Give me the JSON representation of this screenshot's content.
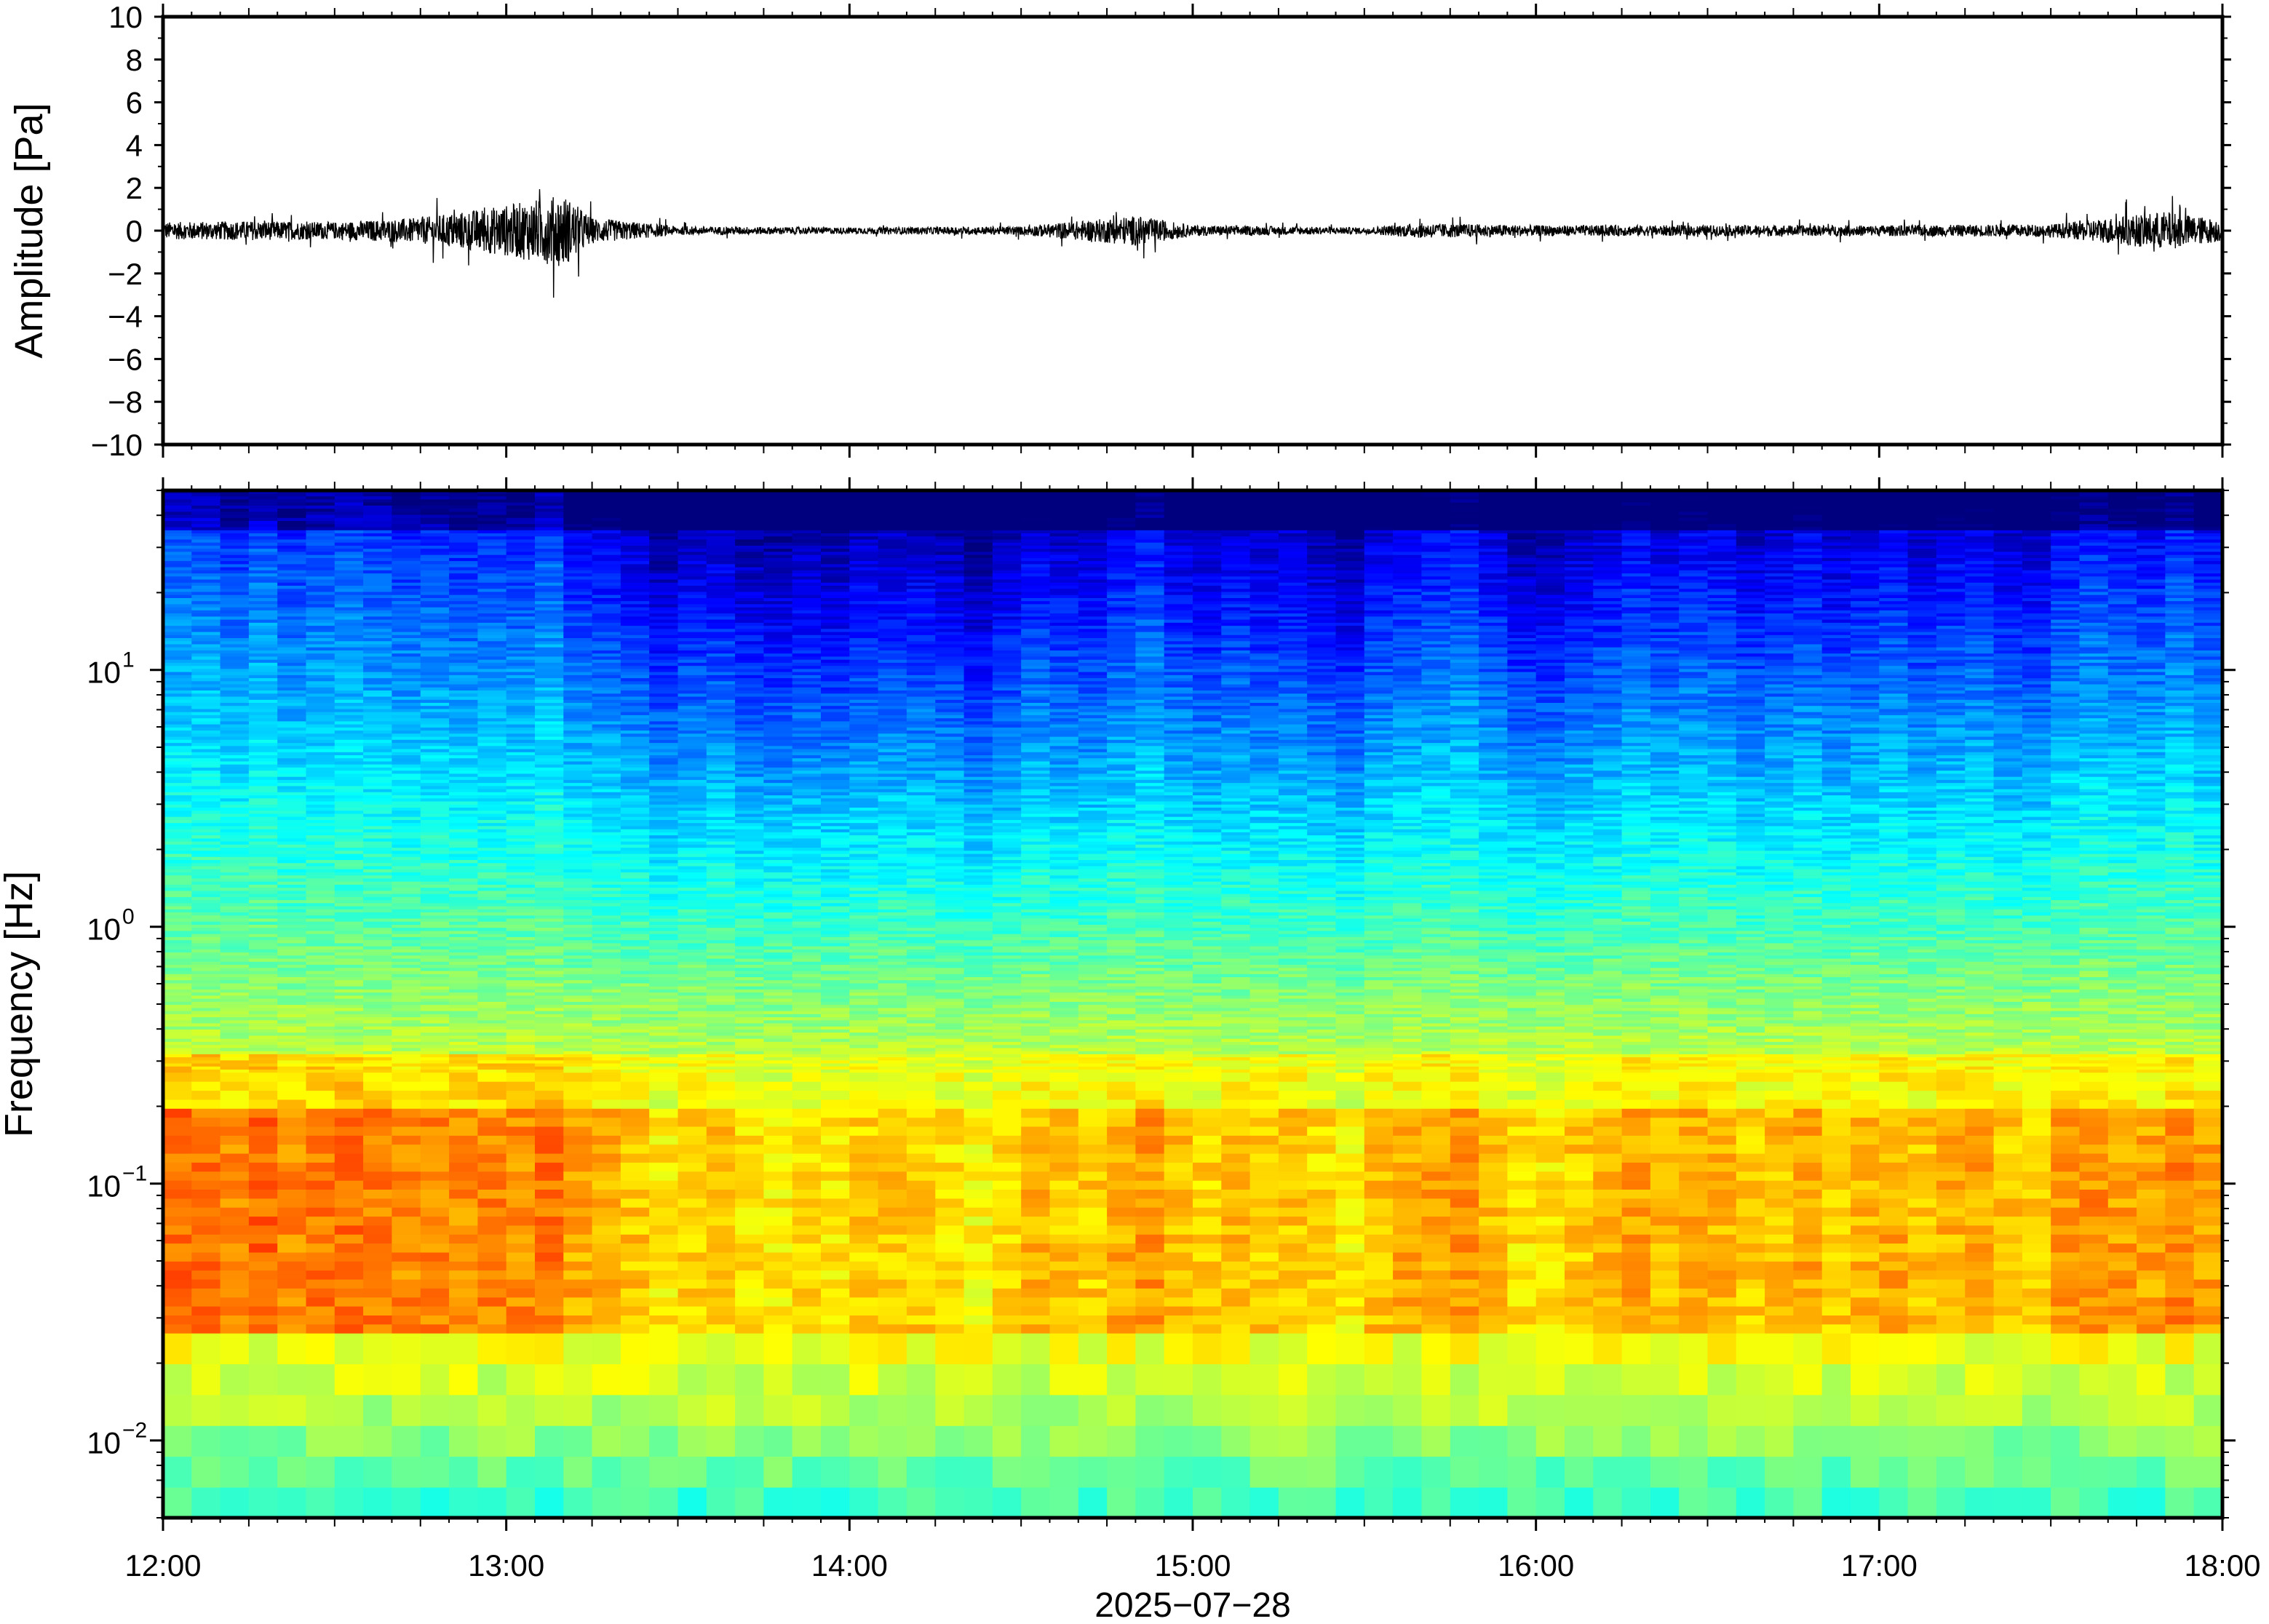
{
  "chart_data": [
    {
      "type": "line",
      "title": "",
      "ylabel": "Amplitude [Pa]",
      "ylim": [
        -10,
        10
      ],
      "yticks": [
        "10",
        "8",
        "6",
        "4",
        "2",
        "0",
        "−2",
        "−4",
        "−6",
        "−8",
        "−10"
      ],
      "xlim": [
        "12:00",
        "18:00"
      ],
      "grid": false,
      "series": [
        {
          "x": [
            "12:00",
            "12:15",
            "12:30",
            "12:45",
            "13:00",
            "13:10",
            "13:15",
            "13:30",
            "14:00",
            "14:30",
            "14:50",
            "15:00",
            "15:30",
            "15:40",
            "16:00",
            "16:30",
            "17:00",
            "17:30",
            "17:50",
            "18:00"
          ],
          "envelope": [
            0.4,
            0.45,
            0.4,
            0.6,
            1.2,
            1.7,
            0.6,
            0.2,
            0.15,
            0.2,
            0.7,
            0.25,
            0.15,
            0.35,
            0.25,
            0.25,
            0.25,
            0.3,
            0.9,
            0.5
          ]
        }
      ]
    },
    {
      "type": "heatmap",
      "title": "",
      "ylabel": "Frequency [Hz]",
      "yscale": "log",
      "ylim": [
        0.005,
        50
      ],
      "yticks": [
        {
          "value": 10,
          "base": "10",
          "exp": "1"
        },
        {
          "value": 1,
          "base": "10",
          "exp": "0"
        },
        {
          "value": 0.1,
          "base": "10",
          "exp": "−1"
        },
        {
          "value": 0.01,
          "base": "10",
          "exp": "−2"
        }
      ],
      "xlabel": "2025−07−28",
      "xticks": [
        "12:00",
        "13:00",
        "14:00",
        "15:00",
        "16:00",
        "17:00",
        "18:00"
      ],
      "colormap": "jet",
      "colors": [
        "#00007f",
        "#0000ff",
        "#007fff",
        "#00ffff",
        "#7fff7f",
        "#ffff00",
        "#ff7f00",
        "#ff0000",
        "#7f0000"
      ]
    }
  ]
}
